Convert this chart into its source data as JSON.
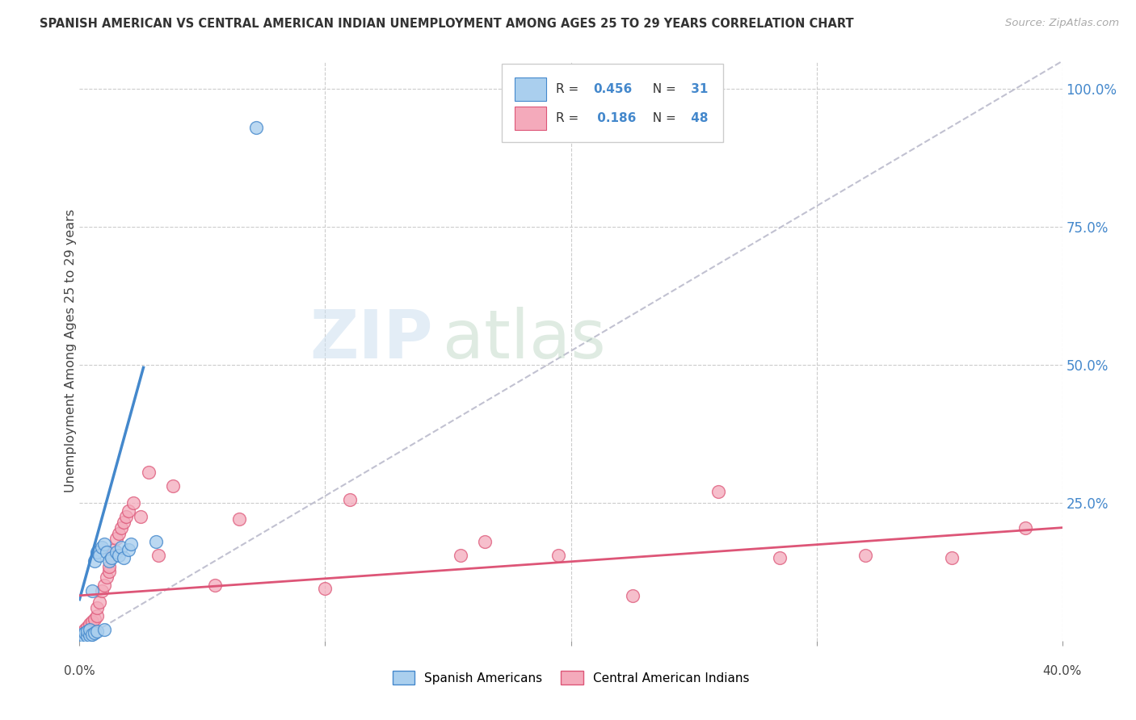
{
  "title": "SPANISH AMERICAN VS CENTRAL AMERICAN INDIAN UNEMPLOYMENT AMONG AGES 25 TO 29 YEARS CORRELATION CHART",
  "source": "Source: ZipAtlas.com",
  "ylabel": "Unemployment Among Ages 25 to 29 years",
  "xlim": [
    0.0,
    0.4
  ],
  "ylim": [
    0.0,
    1.05
  ],
  "color_blue": "#aacfee",
  "color_pink": "#f4aabb",
  "color_blue_line": "#4488cc",
  "color_pink_line": "#dd5577",
  "color_diag": "#bbbbcc",
  "background": "#ffffff",
  "blue_line_x": [
    0.0,
    0.026
  ],
  "blue_line_y": [
    0.075,
    0.495
  ],
  "pink_line_x": [
    0.0,
    0.4
  ],
  "pink_line_y": [
    0.082,
    0.205
  ],
  "spanish_x": [
    0.0,
    0.0,
    0.001,
    0.001,
    0.002,
    0.002,
    0.003,
    0.003,
    0.004,
    0.004,
    0.005,
    0.005,
    0.006,
    0.006,
    0.007,
    0.007,
    0.008,
    0.009,
    0.01,
    0.01,
    0.011,
    0.012,
    0.013,
    0.015,
    0.016,
    0.017,
    0.018,
    0.02,
    0.021,
    0.031,
    0.072
  ],
  "spanish_y": [
    0.002,
    0.008,
    0.003,
    0.012,
    0.005,
    0.015,
    0.008,
    0.018,
    0.01,
    0.02,
    0.012,
    0.09,
    0.015,
    0.145,
    0.018,
    0.16,
    0.155,
    0.17,
    0.02,
    0.175,
    0.16,
    0.145,
    0.15,
    0.16,
    0.155,
    0.17,
    0.15,
    0.165,
    0.175,
    0.18,
    0.93
  ],
  "central_x": [
    0.0,
    0.0,
    0.001,
    0.001,
    0.002,
    0.002,
    0.003,
    0.003,
    0.004,
    0.004,
    0.005,
    0.005,
    0.006,
    0.006,
    0.007,
    0.007,
    0.008,
    0.009,
    0.01,
    0.011,
    0.012,
    0.012,
    0.013,
    0.014,
    0.015,
    0.016,
    0.017,
    0.018,
    0.019,
    0.02,
    0.022,
    0.025,
    0.028,
    0.032,
    0.038,
    0.055,
    0.065,
    0.1,
    0.11,
    0.155,
    0.165,
    0.195,
    0.225,
    0.26,
    0.285,
    0.32,
    0.355,
    0.385
  ],
  "central_y": [
    0.002,
    0.01,
    0.005,
    0.015,
    0.008,
    0.02,
    0.01,
    0.025,
    0.012,
    0.03,
    0.015,
    0.035,
    0.018,
    0.04,
    0.045,
    0.06,
    0.07,
    0.09,
    0.1,
    0.115,
    0.125,
    0.135,
    0.155,
    0.165,
    0.185,
    0.195,
    0.205,
    0.215,
    0.225,
    0.235,
    0.25,
    0.225,
    0.305,
    0.155,
    0.28,
    0.1,
    0.22,
    0.095,
    0.255,
    0.155,
    0.18,
    0.155,
    0.082,
    0.27,
    0.15,
    0.155,
    0.15,
    0.205
  ]
}
